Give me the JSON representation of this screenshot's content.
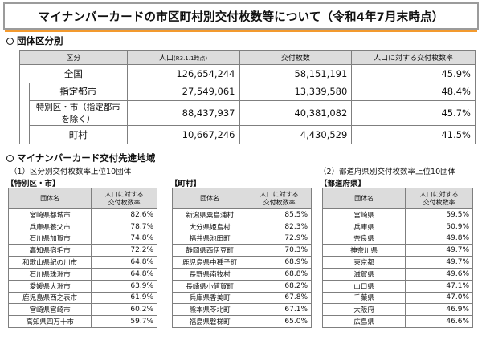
{
  "title": "マイナンバーカードの市区町村別交付枚数等について（令和4年7月末時点）",
  "section1": {
    "title": "団体区分別",
    "headers": {
      "category": "区分",
      "population": "人口",
      "population_note": "(R3.1.1時点)",
      "issued": "交付枚数",
      "rate": "人口に対する交付枚数率"
    },
    "rows": [
      {
        "label": "全国",
        "population": "126,654,244",
        "issued": "58,151,191",
        "rate": "45.9%"
      },
      {
        "label": "指定都市",
        "population": "27,549,061",
        "issued": "13,339,580",
        "rate": "48.4%"
      },
      {
        "label": "特別区・市（指定都市を除く）",
        "population": "88,437,937",
        "issued": "40,381,082",
        "rate": "45.7%"
      },
      {
        "label": "町村",
        "population": "10,667,246",
        "issued": "4,430,529",
        "rate": "41.5%"
      }
    ]
  },
  "section2": {
    "title": "マイナンバーカード交付先進地域",
    "sub1": "（1）区分別交付枚数率上位10団体",
    "sub2": "（2）都道府県別交付枚数率上位10団体",
    "col_name": "団体名",
    "col_rate_l1": "人口に対する",
    "col_rate_l2": "交付枚数率",
    "groups": {
      "city": {
        "label": "【特別区・市】",
        "rows": [
          {
            "name": "宮崎県都城市",
            "rate": "82.6%"
          },
          {
            "name": "兵庫県養父市",
            "rate": "78.7%"
          },
          {
            "name": "石川県加賀市",
            "rate": "74.8%"
          },
          {
            "name": "高知県宿毛市",
            "rate": "72.2%"
          },
          {
            "name": "和歌山県紀の川市",
            "rate": "64.8%"
          },
          {
            "name": "石川県珠洲市",
            "rate": "64.8%"
          },
          {
            "name": "愛媛県大洲市",
            "rate": "63.9%"
          },
          {
            "name": "鹿児島県西之表市",
            "rate": "61.9%"
          },
          {
            "name": "宮崎県宮崎市",
            "rate": "60.2%"
          },
          {
            "name": "高知県四万十市",
            "rate": "59.7%"
          }
        ]
      },
      "town": {
        "label": "【町村】",
        "rows": [
          {
            "name": "新潟県粟島浦村",
            "rate": "85.5%"
          },
          {
            "name": "大分県姫島村",
            "rate": "82.3%"
          },
          {
            "name": "福井県池田町",
            "rate": "72.9%"
          },
          {
            "name": "静岡県西伊豆町",
            "rate": "70.3%"
          },
          {
            "name": "鹿児島県中種子町",
            "rate": "68.9%"
          },
          {
            "name": "長野県南牧村",
            "rate": "68.8%"
          },
          {
            "name": "長崎県小値賀町",
            "rate": "68.2%"
          },
          {
            "name": "兵庫県香美町",
            "rate": "67.8%"
          },
          {
            "name": "熊本県苓北町",
            "rate": "67.1%"
          },
          {
            "name": "福島県磐梯町",
            "rate": "65.0%"
          }
        ]
      },
      "pref": {
        "label": "【都道府県】",
        "rows": [
          {
            "name": "宮崎県",
            "rate": "59.5%"
          },
          {
            "name": "兵庫県",
            "rate": "50.9%"
          },
          {
            "name": "奈良県",
            "rate": "49.8%"
          },
          {
            "name": "神奈川県",
            "rate": "49.7%"
          },
          {
            "name": "東京都",
            "rate": "49.7%"
          },
          {
            "name": "滋賀県",
            "rate": "49.6%"
          },
          {
            "name": "山口県",
            "rate": "47.1%"
          },
          {
            "name": "千葉県",
            "rate": "47.0%"
          },
          {
            "name": "大阪府",
            "rate": "46.9%"
          },
          {
            "name": "広島県",
            "rate": "46.6%"
          }
        ]
      }
    }
  },
  "colors": {
    "accent": "#f39a2e",
    "header_bg": "#dcdcdc",
    "border": "#7f7f7f"
  }
}
